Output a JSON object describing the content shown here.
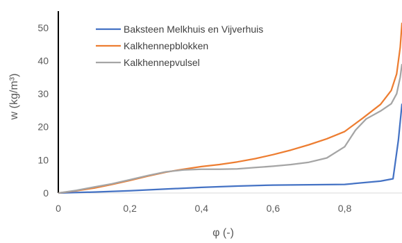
{
  "chart_data": {
    "type": "line",
    "xlabel": "φ (-)",
    "ylabel": "w (kg/m³)",
    "xlim": [
      0,
      0.96
    ],
    "ylim": [
      0,
      55
    ],
    "x_ticks": [
      "0",
      "0,2",
      "0,4",
      "0,6",
      "0,8"
    ],
    "x_tick_values": [
      0,
      0.2,
      0.4,
      0.6,
      0.8
    ],
    "y_ticks": [
      "0",
      "10",
      "20",
      "30",
      "40",
      "50"
    ],
    "y_tick_values": [
      0,
      10,
      20,
      30,
      40,
      50
    ],
    "grid": false,
    "legend_position": "top-center",
    "series": [
      {
        "name": "Baksteen Melkhuis en Vijverhuis",
        "color": "#4472c4",
        "points": [
          [
            0,
            0
          ],
          [
            0.1,
            0.3
          ],
          [
            0.2,
            0.7
          ],
          [
            0.3,
            1.2
          ],
          [
            0.4,
            1.7
          ],
          [
            0.5,
            2.1
          ],
          [
            0.6,
            2.4
          ],
          [
            0.7,
            2.5
          ],
          [
            0.8,
            2.6
          ],
          [
            0.9,
            3.6
          ],
          [
            0.935,
            4.3
          ],
          [
            0.95,
            16
          ],
          [
            0.96,
            27
          ]
        ]
      },
      {
        "name": "Kalkhennepblokken",
        "color": "#ed7d31",
        "points": [
          [
            0,
            0
          ],
          [
            0.05,
            0.7
          ],
          [
            0.1,
            1.5
          ],
          [
            0.15,
            2.6
          ],
          [
            0.2,
            3.8
          ],
          [
            0.25,
            5.1
          ],
          [
            0.3,
            6.3
          ],
          [
            0.35,
            7.2
          ],
          [
            0.4,
            8.0
          ],
          [
            0.45,
            8.6
          ],
          [
            0.5,
            9.4
          ],
          [
            0.55,
            10.4
          ],
          [
            0.6,
            11.6
          ],
          [
            0.65,
            13.0
          ],
          [
            0.7,
            14.6
          ],
          [
            0.75,
            16.4
          ],
          [
            0.8,
            18.6
          ],
          [
            0.85,
            22.6
          ],
          [
            0.9,
            26.8
          ],
          [
            0.93,
            31.0
          ],
          [
            0.945,
            36.0
          ],
          [
            0.955,
            44.0
          ],
          [
            0.96,
            51.5
          ]
        ]
      },
      {
        "name": "Kalkhennepvulsel",
        "color": "#a5a5a5",
        "points": [
          [
            0,
            0
          ],
          [
            0.05,
            0.8
          ],
          [
            0.1,
            1.8
          ],
          [
            0.15,
            2.8
          ],
          [
            0.2,
            4.0
          ],
          [
            0.25,
            5.3
          ],
          [
            0.3,
            6.4
          ],
          [
            0.35,
            7.0
          ],
          [
            0.4,
            7.2
          ],
          [
            0.45,
            7.2
          ],
          [
            0.5,
            7.3
          ],
          [
            0.55,
            7.7
          ],
          [
            0.6,
            8.1
          ],
          [
            0.65,
            8.6
          ],
          [
            0.7,
            9.3
          ],
          [
            0.75,
            10.6
          ],
          [
            0.8,
            14.0
          ],
          [
            0.83,
            19.0
          ],
          [
            0.86,
            22.4
          ],
          [
            0.9,
            24.8
          ],
          [
            0.93,
            27.0
          ],
          [
            0.945,
            30.0
          ],
          [
            0.955,
            35.0
          ],
          [
            0.96,
            39.0
          ]
        ]
      }
    ]
  }
}
